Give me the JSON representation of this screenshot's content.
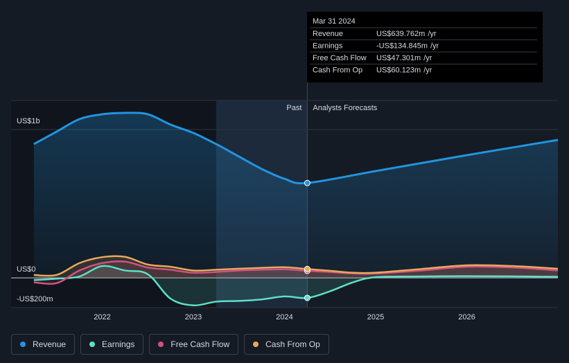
{
  "chart_data": {
    "type": "line",
    "xlim": [
      2021.0,
      2027.0
    ],
    "xticks": [
      2022,
      2023,
      2024,
      2025,
      2026
    ],
    "ylim": [
      -200,
      1196
    ],
    "yticks": [
      {
        "value": -200,
        "label": "-US$200m"
      },
      {
        "value": 0,
        "label": "US$0"
      },
      {
        "value": 1000,
        "label": "US$1b"
      }
    ],
    "grid": true,
    "past_label": "Past",
    "forecast_label": "Analysts Forecasts",
    "series": [
      {
        "name": "Revenue",
        "color": "#2394df",
        "x": [
          2021.25,
          2021.5,
          2021.75,
          2022.0,
          2022.25,
          2022.5,
          2022.75,
          2023.0,
          2023.25,
          2023.5,
          2023.75,
          2024.0,
          2024.25,
          2025.0,
          2026.0,
          2027.0
        ],
        "values": [
          902,
          986,
          1070,
          1103,
          1112,
          1103,
          1033,
          977,
          902,
          818,
          734,
          668,
          639.762,
          720,
          827,
          930
        ]
      },
      {
        "name": "Earnings",
        "color": "#5ce0c6",
        "x": [
          2021.25,
          2021.5,
          2021.75,
          2022.0,
          2022.25,
          2022.5,
          2022.75,
          2023.0,
          2023.25,
          2023.5,
          2023.75,
          2024.0,
          2024.25,
          2024.5,
          2024.75,
          2025.0,
          2025.5,
          2026.0,
          2027.0
        ],
        "values": [
          -15,
          -5,
          10,
          80,
          50,
          25,
          -140,
          -185,
          -160,
          -155,
          -145,
          -125,
          -134.845,
          -90,
          -30,
          5,
          10,
          12,
          8
        ]
      },
      {
        "name": "Free Cash Flow",
        "color": "#d2527f",
        "x": [
          2021.25,
          2021.5,
          2021.75,
          2022.0,
          2022.25,
          2022.5,
          2022.75,
          2023.0,
          2023.25,
          2023.5,
          2023.75,
          2024.0,
          2024.25,
          2024.5,
          2024.75,
          2025.0,
          2025.5,
          2026.0,
          2026.5,
          2027.0
        ],
        "values": [
          -30,
          -35,
          50,
          100,
          110,
          70,
          55,
          35,
          40,
          50,
          55,
          58,
          47.301,
          40,
          30,
          30,
          50,
          75,
          70,
          50
        ]
      },
      {
        "name": "Cash From Op",
        "color": "#e8a95c",
        "x": [
          2021.25,
          2021.5,
          2021.75,
          2022.0,
          2022.25,
          2022.5,
          2022.75,
          2023.0,
          2023.25,
          2023.5,
          2023.75,
          2024.0,
          2024.25,
          2024.5,
          2024.75,
          2025.0,
          2025.5,
          2026.0,
          2026.5,
          2027.0
        ],
        "values": [
          20,
          20,
          100,
          140,
          142,
          90,
          75,
          50,
          55,
          62,
          68,
          72,
          60.123,
          48,
          35,
          35,
          60,
          85,
          80,
          62
        ]
      }
    ],
    "tooltip": {
      "date": "Mar 31 2024",
      "rows": [
        {
          "label": "Revenue",
          "value": "US$639.762m",
          "unit": "/yr",
          "color": "#2394df"
        },
        {
          "label": "Earnings",
          "value": "-US$134.845m",
          "unit": "/yr",
          "color": "#ff4d4d"
        },
        {
          "label": "Free Cash Flow",
          "value": "US$47.301m",
          "unit": "/yr",
          "color": "#d2527f"
        },
        {
          "label": "Cash From Op",
          "value": "US$60.123m",
          "unit": "/yr",
          "color": "#e8a95c"
        }
      ]
    }
  }
}
